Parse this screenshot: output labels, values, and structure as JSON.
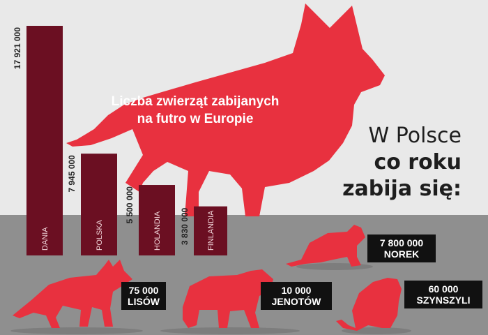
{
  "title": {
    "line1": "Liczba zwierząt zabijanych",
    "line2": "na futro w Europie"
  },
  "poland_heading": {
    "line1": "W Polsce",
    "line2": "co roku",
    "line3": "zabija się:"
  },
  "colors": {
    "bar": "#6b0f22",
    "red": "#e8313f",
    "floor": "#8f8f8f",
    "background": "#e9e9e9",
    "label_bg": "#111111"
  },
  "chart_data": {
    "type": "bar",
    "title": "Liczba zwierząt zabijanych na futro w Europie",
    "categories": [
      "DANIA",
      "POLSKA",
      "HOLANDIA",
      "FINLANDIA"
    ],
    "values": [
      17921000,
      7945000,
      5500000,
      3830000
    ],
    "value_labels": [
      "17 921 000",
      "7 945 000",
      "5 500 000",
      "3 830 000"
    ]
  },
  "poland_animals": [
    {
      "name": "LISÓW",
      "count": "75 000",
      "icon": "fox-icon"
    },
    {
      "name": "JENOTÓW",
      "count": "10 000",
      "icon": "raccoon-dog-icon"
    },
    {
      "name": "NOREK",
      "count": "7 800 000",
      "icon": "mink-icon"
    },
    {
      "name": "SZYNSZYLI",
      "count": "60 000",
      "icon": "chinchilla-icon"
    }
  ]
}
